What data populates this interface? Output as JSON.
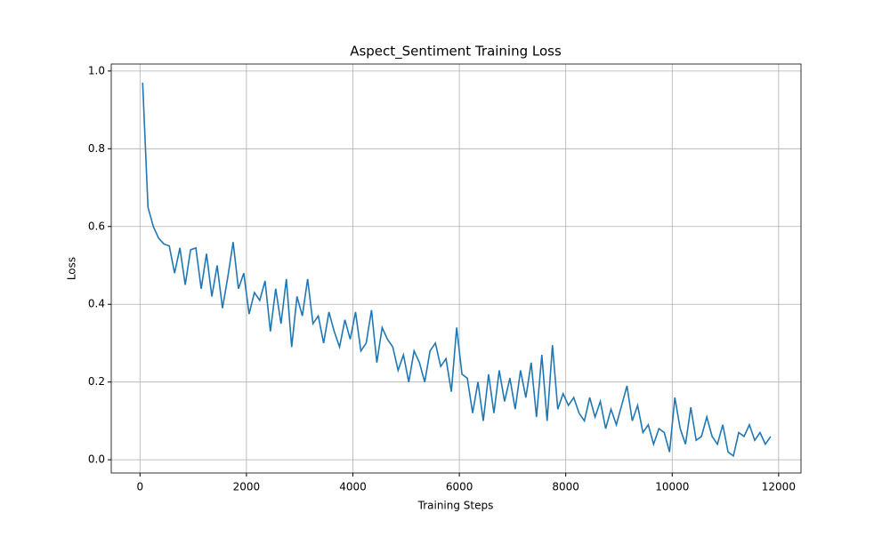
{
  "chart_data": {
    "type": "line",
    "title": "Aspect_Sentiment Training Loss",
    "xlabel": "Training Steps",
    "ylabel": "Loss",
    "x": [
      50,
      150,
      250,
      350,
      450,
      550,
      650,
      750,
      850,
      950,
      1050,
      1150,
      1250,
      1350,
      1450,
      1550,
      1650,
      1750,
      1850,
      1950,
      2050,
      2150,
      2250,
      2350,
      2450,
      2550,
      2650,
      2750,
      2850,
      2950,
      3050,
      3150,
      3250,
      3350,
      3450,
      3550,
      3650,
      3750,
      3850,
      3950,
      4050,
      4150,
      4250,
      4350,
      4450,
      4550,
      4650,
      4750,
      4850,
      4950,
      5050,
      5150,
      5250,
      5350,
      5450,
      5550,
      5650,
      5750,
      5850,
      5950,
      6050,
      6150,
      6250,
      6350,
      6450,
      6550,
      6650,
      6750,
      6850,
      6950,
      7050,
      7150,
      7250,
      7350,
      7450,
      7550,
      7650,
      7750,
      7850,
      7950,
      8050,
      8150,
      8250,
      8350,
      8450,
      8550,
      8650,
      8750,
      8850,
      8950,
      9050,
      9150,
      9250,
      9350,
      9450,
      9550,
      9650,
      9750,
      9850,
      9950,
      10050,
      10150,
      10250,
      10350,
      10450,
      10550,
      10650,
      10750,
      10850,
      10950,
      11050,
      11150,
      11250,
      11350,
      11450,
      11550,
      11650,
      11750,
      11850
    ],
    "series": [
      {
        "name": "Loss",
        "color": "#1f77b4",
        "values": [
          0.97,
          0.65,
          0.6,
          0.57,
          0.555,
          0.55,
          0.48,
          0.545,
          0.45,
          0.54,
          0.545,
          0.44,
          0.53,
          0.42,
          0.5,
          0.39,
          0.47,
          0.56,
          0.44,
          0.48,
          0.375,
          0.43,
          0.41,
          0.46,
          0.33,
          0.44,
          0.35,
          0.465,
          0.29,
          0.42,
          0.37,
          0.465,
          0.35,
          0.37,
          0.3,
          0.38,
          0.33,
          0.29,
          0.36,
          0.31,
          0.38,
          0.28,
          0.3,
          0.385,
          0.25,
          0.34,
          0.31,
          0.29,
          0.23,
          0.27,
          0.2,
          0.28,
          0.25,
          0.2,
          0.28,
          0.3,
          0.24,
          0.26,
          0.175,
          0.34,
          0.22,
          0.21,
          0.12,
          0.2,
          0.1,
          0.22,
          0.12,
          0.23,
          0.15,
          0.21,
          0.13,
          0.23,
          0.16,
          0.25,
          0.11,
          0.27,
          0.1,
          0.295,
          0.13,
          0.17,
          0.14,
          0.16,
          0.12,
          0.1,
          0.16,
          0.11,
          0.15,
          0.08,
          0.13,
          0.09,
          0.14,
          0.19,
          0.1,
          0.14,
          0.07,
          0.09,
          0.04,
          0.08,
          0.07,
          0.02,
          0.16,
          0.08,
          0.04,
          0.135,
          0.05,
          0.06,
          0.11,
          0.06,
          0.04,
          0.09,
          0.02,
          0.01,
          0.07,
          0.06,
          0.09,
          0.05,
          0.07,
          0.04,
          0.06
        ]
      }
    ],
    "xlim": [
      -540,
      12420
    ],
    "xticks": [
      0,
      2000,
      4000,
      6000,
      8000,
      10000,
      12000
    ],
    "ylim": [
      -0.034,
      1.018
    ],
    "yticks": [
      {
        "value": 0,
        "label": "0.0"
      },
      0.2,
      0.4,
      0.6,
      0.8,
      {
        "value": 1,
        "label": "1.0"
      }
    ],
    "grid": true
  }
}
